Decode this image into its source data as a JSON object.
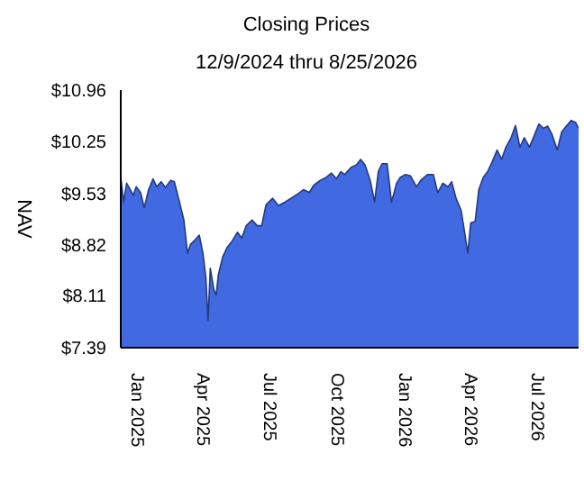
{
  "chart_data": {
    "type": "area",
    "title": "Closing Prices",
    "subtitle": "12/9/2024 thru 8/25/2026",
    "ylabel": "NAV",
    "x": [
      "2024-12-09",
      "2024-12-13",
      "2024-12-17",
      "2024-12-22",
      "2024-12-26",
      "2024-12-30",
      "2025-01-05",
      "2025-01-10",
      "2025-01-16",
      "2025-01-22",
      "2025-01-27",
      "2025-02-02",
      "2025-02-08",
      "2025-02-15",
      "2025-02-20",
      "2025-02-27",
      "2025-03-05",
      "2025-03-10",
      "2025-03-14",
      "2025-03-20",
      "2025-03-26",
      "2025-03-31",
      "2025-04-04",
      "2025-04-07",
      "2025-04-10",
      "2025-04-15",
      "2025-04-18",
      "2025-04-21",
      "2025-04-27",
      "2025-05-03",
      "2025-05-10",
      "2025-05-17",
      "2025-05-23",
      "2025-05-29",
      "2025-06-06",
      "2025-06-13",
      "2025-06-19",
      "2025-06-25",
      "2025-07-04",
      "2025-07-12",
      "2025-07-21",
      "2025-07-29",
      "2025-08-07",
      "2025-08-15",
      "2025-08-23",
      "2025-08-29",
      "2025-09-07",
      "2025-09-15",
      "2025-09-22",
      "2025-09-29",
      "2025-10-05",
      "2025-10-10",
      "2025-10-19",
      "2025-10-26",
      "2025-11-01",
      "2025-11-07",
      "2025-11-14",
      "2025-11-20",
      "2025-11-25",
      "2025-11-30",
      "2025-12-07",
      "2025-12-13",
      "2025-12-20",
      "2025-12-25",
      "2026-01-01",
      "2026-01-08",
      "2026-01-16",
      "2026-01-22",
      "2026-01-31",
      "2026-02-08",
      "2026-02-14",
      "2026-02-21",
      "2026-02-28",
      "2026-03-05",
      "2026-03-11",
      "2026-03-18",
      "2026-03-22",
      "2026-03-27",
      "2026-03-31",
      "2026-04-06",
      "2026-04-11",
      "2026-04-17",
      "2026-04-23",
      "2026-04-29",
      "2026-05-06",
      "2026-05-12",
      "2026-05-18",
      "2026-05-25",
      "2026-05-31",
      "2026-06-06",
      "2026-06-12",
      "2026-06-19",
      "2026-06-26",
      "2026-07-02",
      "2026-07-08",
      "2026-07-14",
      "2026-07-20",
      "2026-07-27",
      "2026-08-02",
      "2026-08-09",
      "2026-08-15",
      "2026-08-21",
      "2026-08-25"
    ],
    "series": [
      {
        "color": "#4169e1",
        "values": [
          9.75,
          9.41,
          9.67,
          9.58,
          9.5,
          9.62,
          9.54,
          9.33,
          9.58,
          9.73,
          9.62,
          9.69,
          9.61,
          9.71,
          9.69,
          9.41,
          9.16,
          8.7,
          8.82,
          8.88,
          8.95,
          8.7,
          8.36,
          7.77,
          8.49,
          8.19,
          8.12,
          8.4,
          8.65,
          8.78,
          8.87,
          8.99,
          8.91,
          9.08,
          9.16,
          9.08,
          9.08,
          9.37,
          9.46,
          9.36,
          9.41,
          9.46,
          9.52,
          9.58,
          9.54,
          9.64,
          9.71,
          9.75,
          9.81,
          9.73,
          9.83,
          9.79,
          9.89,
          9.92,
          10.0,
          9.92,
          9.71,
          9.41,
          9.83,
          9.94,
          9.94,
          9.41,
          9.67,
          9.75,
          9.79,
          9.77,
          9.62,
          9.71,
          9.79,
          9.79,
          9.54,
          9.67,
          9.62,
          9.69,
          9.46,
          9.29,
          9.03,
          8.7,
          9.12,
          9.14,
          9.58,
          9.75,
          9.83,
          9.96,
          10.13,
          10.0,
          10.17,
          10.3,
          10.47,
          10.17,
          10.3,
          10.17,
          10.34,
          10.49,
          10.43,
          10.46,
          10.34,
          10.13,
          10.38,
          10.47,
          10.54,
          10.51,
          10.43
        ]
      }
    ],
    "xlim": [
      "2024-12-09",
      "2026-08-25"
    ],
    "xticks": [
      {
        "value": "2025-01-01",
        "label": "Jan 2025"
      },
      {
        "value": "2025-04-01",
        "label": "Apr 2025"
      },
      {
        "value": "2025-07-01",
        "label": "Jul 2025"
      },
      {
        "value": "2025-10-01",
        "label": "Oct 2025"
      },
      {
        "value": "2026-01-01",
        "label": "Jan 2026"
      },
      {
        "value": "2026-04-01",
        "label": "Apr 2026"
      },
      {
        "value": "2026-07-01",
        "label": "Jul 2026"
      }
    ],
    "ylim": [
      7.39,
      10.96
    ],
    "yticks": [
      {
        "value": 7.39,
        "label": "$7.39"
      },
      {
        "value": 8.11,
        "label": "$8.11"
      },
      {
        "value": 8.82,
        "label": "$8.82"
      },
      {
        "value": 9.53,
        "label": "$9.53"
      },
      {
        "value": 10.25,
        "label": "$10.25"
      },
      {
        "value": 10.96,
        "label": "$10.96"
      }
    ]
  }
}
